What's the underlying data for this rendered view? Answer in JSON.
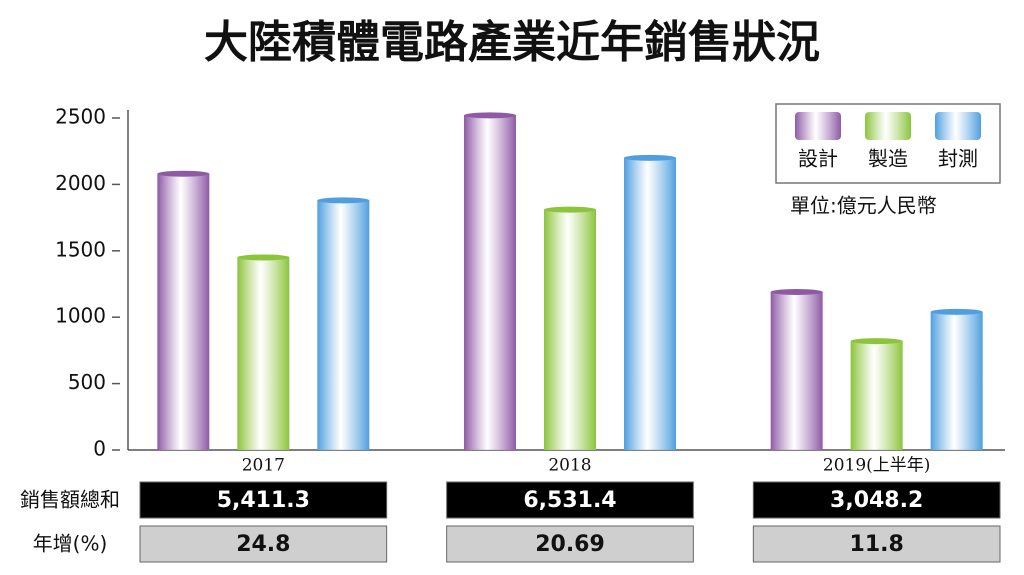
{
  "chart_data": {
    "type": "bar",
    "title": "大陸積體電路產業近年銷售狀況",
    "categories": [
      "2017",
      "2018",
      "2019(上半年)"
    ],
    "series": [
      {
        "name": "設計",
        "color": "#8e5aa6",
        "values": [
          2080,
          2520,
          1190
        ]
      },
      {
        "name": "製造",
        "color": "#8cc43c",
        "values": [
          1450,
          1810,
          820
        ]
      },
      {
        "name": "封測",
        "color": "#4f9fe0",
        "values": [
          1880,
          2200,
          1040
        ]
      }
    ],
    "ylim": [
      0,
      2500
    ],
    "yticks": [
      0,
      500,
      1000,
      1500,
      2000,
      2500
    ],
    "grid": false,
    "legend": "top-right",
    "annotation": "單位:億元人民幣"
  },
  "table": {
    "row_labels": [
      "銷售額總和",
      "年增(%)"
    ],
    "rows": [
      [
        "5,411.3",
        "6,531.4",
        "3,048.2"
      ],
      [
        "24.8",
        "20.69",
        "11.8"
      ]
    ]
  }
}
